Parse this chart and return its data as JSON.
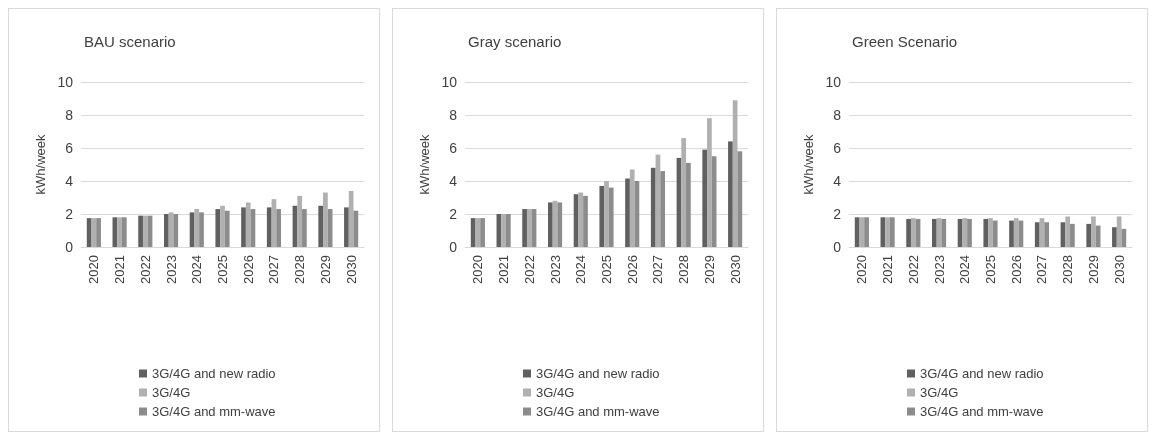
{
  "chart_data": [
    {
      "type": "bar",
      "title": "BAU scenario",
      "ylabel": "kWh/week",
      "categories": [
        "2020",
        "2021",
        "2022",
        "2023",
        "2024",
        "2025",
        "2026",
        "2027",
        "2028",
        "2029",
        "2030"
      ],
      "ylim": [
        0,
        10
      ],
      "yticks": [
        0,
        2,
        4,
        6,
        8,
        10
      ],
      "grid": "y",
      "legend": "bottom",
      "series": [
        {
          "name": "3G/4G and new radio",
          "color": "#606060",
          "values": [
            1.75,
            1.8,
            1.9,
            2.0,
            2.1,
            2.3,
            2.4,
            2.4,
            2.5,
            2.5,
            2.4
          ]
        },
        {
          "name": "3G/4G",
          "color": "#b0b0b0",
          "values": [
            1.75,
            1.8,
            1.9,
            2.1,
            2.3,
            2.5,
            2.7,
            2.9,
            3.1,
            3.3,
            3.4
          ]
        },
        {
          "name": "3G/4G and mm-wave",
          "color": "#8c8c8c",
          "values": [
            1.75,
            1.8,
            1.9,
            2.0,
            2.1,
            2.2,
            2.3,
            2.3,
            2.3,
            2.3,
            2.2
          ]
        }
      ]
    },
    {
      "type": "bar",
      "title": "Gray scenario",
      "ylabel": "kWh/week",
      "categories": [
        "2020",
        "2021",
        "2022",
        "2023",
        "2024",
        "2025",
        "2026",
        "2027",
        "2028",
        "2029",
        "2030"
      ],
      "ylim": [
        0,
        10
      ],
      "yticks": [
        0,
        2,
        4,
        6,
        8,
        10
      ],
      "grid": "y",
      "legend": "bottom",
      "series": [
        {
          "name": "3G/4G and new radio",
          "color": "#606060",
          "values": [
            1.75,
            2.0,
            2.3,
            2.7,
            3.2,
            3.7,
            4.15,
            4.8,
            5.4,
            5.9,
            6.4
          ]
        },
        {
          "name": "3G/4G",
          "color": "#b0b0b0",
          "values": [
            1.75,
            2.0,
            2.3,
            2.8,
            3.3,
            4.0,
            4.7,
            5.6,
            6.6,
            7.8,
            8.9
          ]
        },
        {
          "name": "3G/4G and mm-wave",
          "color": "#8c8c8c",
          "values": [
            1.75,
            2.0,
            2.3,
            2.7,
            3.1,
            3.6,
            4.0,
            4.6,
            5.1,
            5.5,
            5.8
          ]
        }
      ]
    },
    {
      "type": "bar",
      "title": "Green Scenario",
      "ylabel": "kWh/week",
      "categories": [
        "2020",
        "2021",
        "2022",
        "2023",
        "2024",
        "2025",
        "2026",
        "2027",
        "2028",
        "2029",
        "2030"
      ],
      "ylim": [
        0,
        10
      ],
      "yticks": [
        0,
        2,
        4,
        6,
        8,
        10
      ],
      "grid": "y",
      "legend": "bottom",
      "series": [
        {
          "name": "3G/4G and new radio",
          "color": "#606060",
          "values": [
            1.8,
            1.8,
            1.7,
            1.7,
            1.7,
            1.7,
            1.6,
            1.5,
            1.5,
            1.4,
            1.2
          ]
        },
        {
          "name": "3G/4G",
          "color": "#b0b0b0",
          "values": [
            1.8,
            1.8,
            1.75,
            1.75,
            1.75,
            1.75,
            1.75,
            1.75,
            1.85,
            1.85,
            1.85
          ]
        },
        {
          "name": "3G/4G and mm-wave",
          "color": "#8c8c8c",
          "values": [
            1.8,
            1.8,
            1.7,
            1.7,
            1.7,
            1.6,
            1.6,
            1.5,
            1.4,
            1.3,
            1.1
          ]
        }
      ]
    }
  ]
}
